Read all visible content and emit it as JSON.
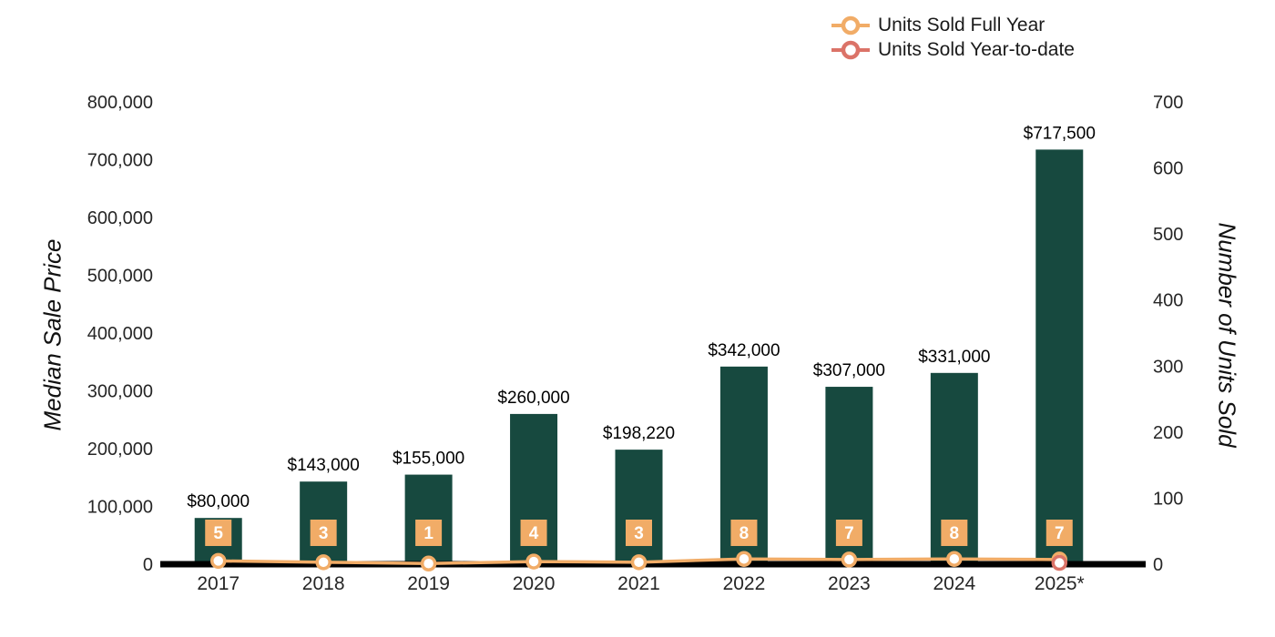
{
  "chart_data": {
    "type": "bar",
    "subtype": "combo-bar-line-dual-axis",
    "title": "",
    "categories": [
      "2017",
      "2018",
      "2019",
      "2020",
      "2021",
      "2022",
      "2023",
      "2024",
      "2025*"
    ],
    "bar_series": {
      "name": "Median Sale Price",
      "color": "#17493F",
      "axis": "left",
      "values": [
        80000,
        143000,
        155000,
        260000,
        198220,
        342000,
        307000,
        331000,
        717500
      ],
      "value_labels": [
        "$80,000",
        "$143,000",
        "$155,000",
        "$260,000",
        "$198,220",
        "$342,000",
        "$307,000",
        "$331,000",
        "$717,500"
      ]
    },
    "line_series": [
      {
        "name": "Units Sold Full Year",
        "color": "#F1AC67",
        "axis": "right",
        "values": [
          5,
          3,
          1,
          4,
          3,
          8,
          7,
          8,
          7
        ],
        "point_labels": [
          "5",
          "3",
          "1",
          "4",
          "3",
          "8",
          "7",
          "8",
          "7"
        ],
        "label_bg": "#F1AC67",
        "label_text_color": "#FFFFFF"
      },
      {
        "name": "Units Sold Year-to-date",
        "color": "#DB7368",
        "axis": "right",
        "values": [
          null,
          null,
          null,
          null,
          null,
          null,
          null,
          null,
          2
        ]
      }
    ],
    "left_axis": {
      "title": "Median Sale Price",
      "min": 0,
      "max": 800000,
      "tick_labels": [
        "0",
        "100,000",
        "200,000",
        "300,000",
        "400,000",
        "500,000",
        "600,000",
        "700,000",
        "800,000"
      ]
    },
    "right_axis": {
      "title": "Number of Units Sold",
      "min": 0,
      "max": 700,
      "tick_labels": [
        "0",
        "100",
        "200",
        "300",
        "400",
        "500",
        "600",
        "700"
      ]
    },
    "legend": {
      "position": "top-right",
      "items": [
        {
          "label": "Units Sold Full Year",
          "color": "#F1AC67"
        },
        {
          "label": "Units Sold Year-to-date",
          "color": "#DB7368"
        }
      ]
    },
    "grid": false,
    "axis_line_color": "#000000",
    "background": "#FFFFFF"
  }
}
